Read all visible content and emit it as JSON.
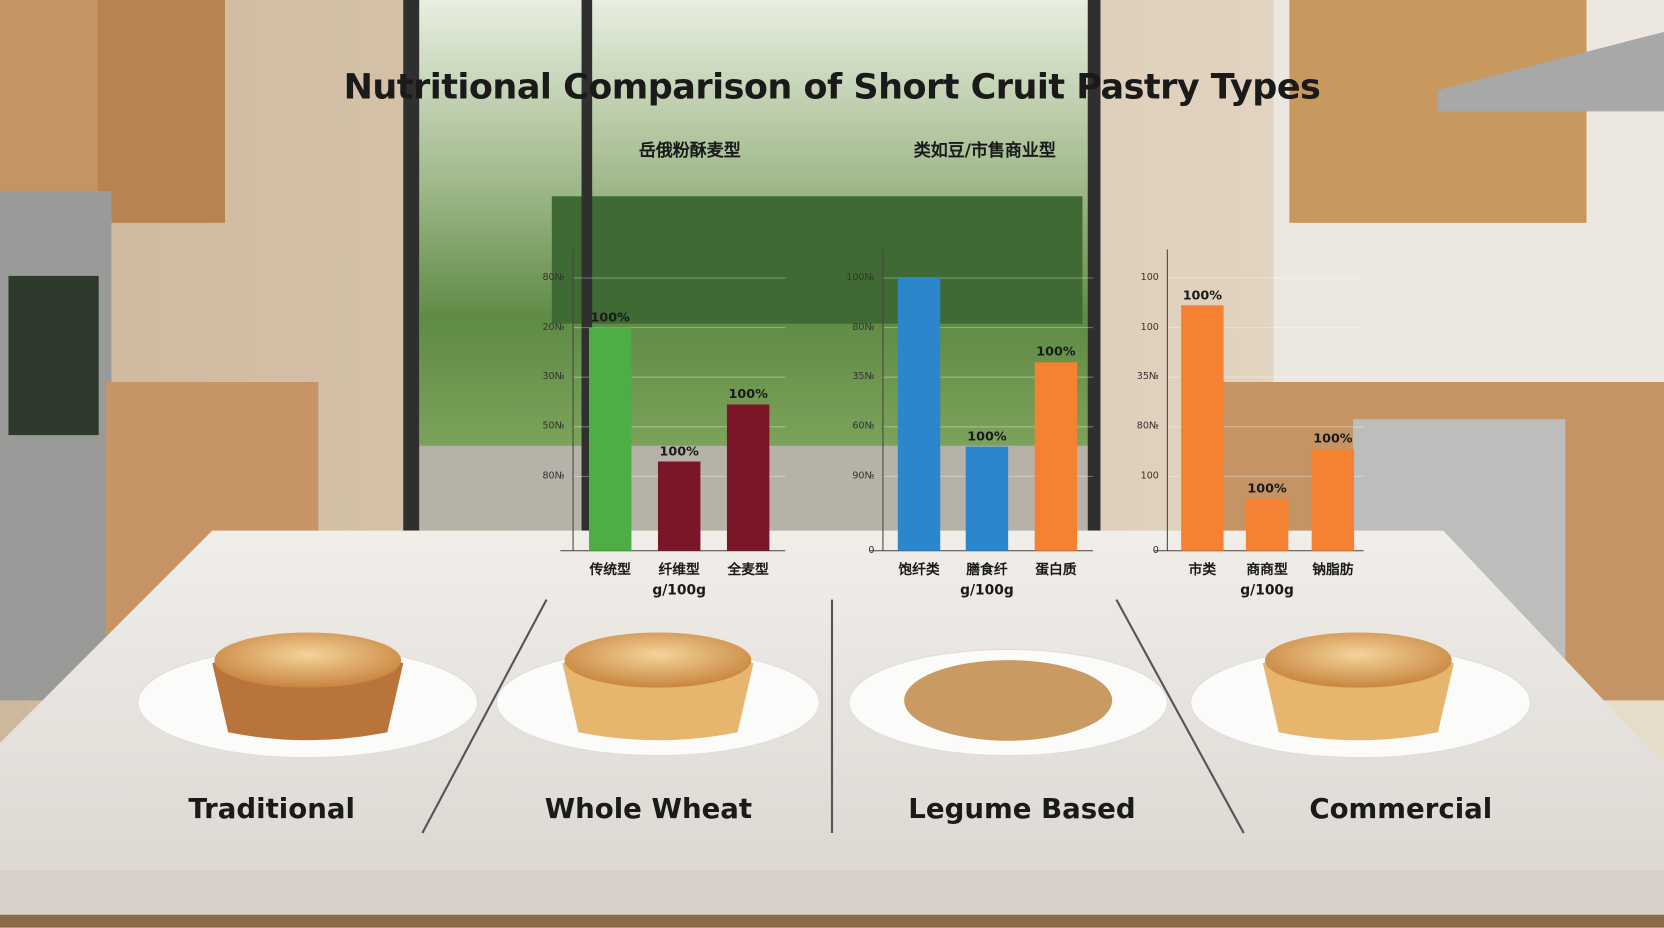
{
  "title": "Nutritional Comparison of Short Cruit Pastry Types",
  "labels": [
    "Traditional",
    "Whole Wheat",
    "Legume Based",
    "Commercial"
  ],
  "chart_data": [
    {
      "type": "bar",
      "subtitle": "岳俄粉酥麦型",
      "categories": [
        "传统型",
        "纤维型\ng/100g",
        "全麦型"
      ],
      "values": [
        90,
        36,
        59
      ],
      "colors": [
        "#4cae44",
        "#7a1628",
        "#7a1628"
      ],
      "bar_labels": [
        "100%",
        "100%",
        "100%"
      ],
      "ylim": [
        0,
        120
      ],
      "yticks": [
        {
          "value": 30,
          "label": "80№"
        },
        {
          "value": 50,
          "label": "50№"
        },
        {
          "value": 70,
          "label": "30№"
        },
        {
          "value": 90,
          "label": "20№"
        },
        {
          "value": 110,
          "label": "80№"
        }
      ],
      "grid": true
    },
    {
      "type": "bar",
      "subtitle": "类如豆/市售商业型",
      "categories": [
        "饱纤类",
        "膳食纤\ng/100g",
        "蛋白质"
      ],
      "values": [
        110,
        42,
        76
      ],
      "colors": [
        "#2b86cc",
        "#2b86cc",
        "#f58230"
      ],
      "bar_labels": [
        null,
        "100%",
        "100%"
      ],
      "ylim": [
        0,
        120
      ],
      "yticks": [
        0,
        {
          "value": 30,
          "label": "90№"
        },
        {
          "value": 50,
          "label": "60№"
        },
        {
          "value": 70,
          "label": "35№"
        },
        {
          "value": 90,
          "label": "80№"
        },
        {
          "value": 110,
          "label": "100№"
        }
      ],
      "grid": true
    },
    {
      "type": "bar",
      "categories": [
        "市类",
        "商商型\ng/100g",
        "钠脂肪"
      ],
      "values": [
        99,
        21,
        41
      ],
      "colors": [
        "#f58230",
        "#f58230",
        "#f58230"
      ],
      "bar_labels": [
        "100%",
        "100%",
        "100%"
      ],
      "ylim": [
        0,
        120
      ],
      "yticks": [
        0,
        {
          "value": 30,
          "label": "100"
        },
        {
          "value": 50,
          "label": "80№"
        },
        {
          "value": 70,
          "label": "35№"
        },
        {
          "value": 90,
          "label": "100"
        },
        {
          "value": 110,
          "label": "100"
        }
      ],
      "grid": true
    }
  ]
}
